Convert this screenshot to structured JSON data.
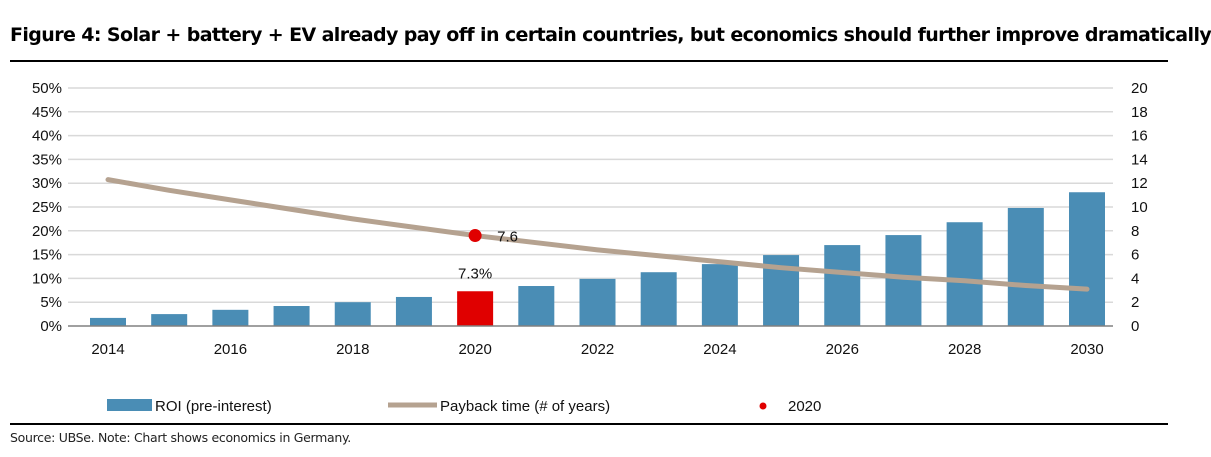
{
  "title": "Figure 4: Solar + battery + EV already pay off in certain countries, but economics should further improve dramatically",
  "source": "Source:  UBSe. Note: Chart shows economics in Germany.",
  "chart_data": {
    "type": "bar+line",
    "x": [
      2014,
      2015,
      2016,
      2017,
      2018,
      2019,
      2020,
      2021,
      2022,
      2023,
      2024,
      2025,
      2026,
      2027,
      2028,
      2029,
      2030
    ],
    "x_tick_labels": [
      "2014",
      "2016",
      "2018",
      "2020",
      "2022",
      "2024",
      "2026",
      "2028",
      "2030"
    ],
    "left_axis": {
      "ylim": [
        0,
        50
      ],
      "ticks": [
        "0%",
        "5%",
        "10%",
        "15%",
        "20%",
        "25%",
        "30%",
        "35%",
        "40%",
        "45%",
        "50%"
      ]
    },
    "right_axis": {
      "ylim": [
        0,
        20
      ],
      "ticks": [
        "0",
        "2",
        "4",
        "6",
        "8",
        "10",
        "12",
        "14",
        "16",
        "18",
        "20"
      ]
    },
    "grid": true,
    "legend_position": "bottom",
    "series": [
      {
        "name": "ROI (pre-interest)",
        "type": "bar",
        "axis": "left",
        "color": "#4a8db5",
        "highlight_color": "#e00000",
        "highlight_x": 2020,
        "values": [
          1.7,
          2.5,
          3.4,
          4.2,
          5.0,
          6.1,
          7.3,
          8.4,
          9.9,
          11.3,
          13.0,
          14.9,
          17.0,
          19.1,
          21.8,
          24.8,
          28.1
        ]
      },
      {
        "name": "Payback time (# of years)",
        "type": "line",
        "axis": "right",
        "color": "#b5a290",
        "values": [
          12.3,
          11.4,
          10.6,
          9.8,
          9.0,
          8.3,
          7.6,
          7.0,
          6.4,
          5.9,
          5.4,
          4.9,
          4.5,
          4.1,
          3.8,
          3.4,
          3.1
        ]
      },
      {
        "name": "2020",
        "type": "scatter",
        "axis": "right",
        "color": "#e00000",
        "x": [
          2020
        ],
        "values": [
          7.6
        ]
      }
    ],
    "data_labels": {
      "bar_2020": "7.3%",
      "point_2020": "7.6"
    }
  }
}
